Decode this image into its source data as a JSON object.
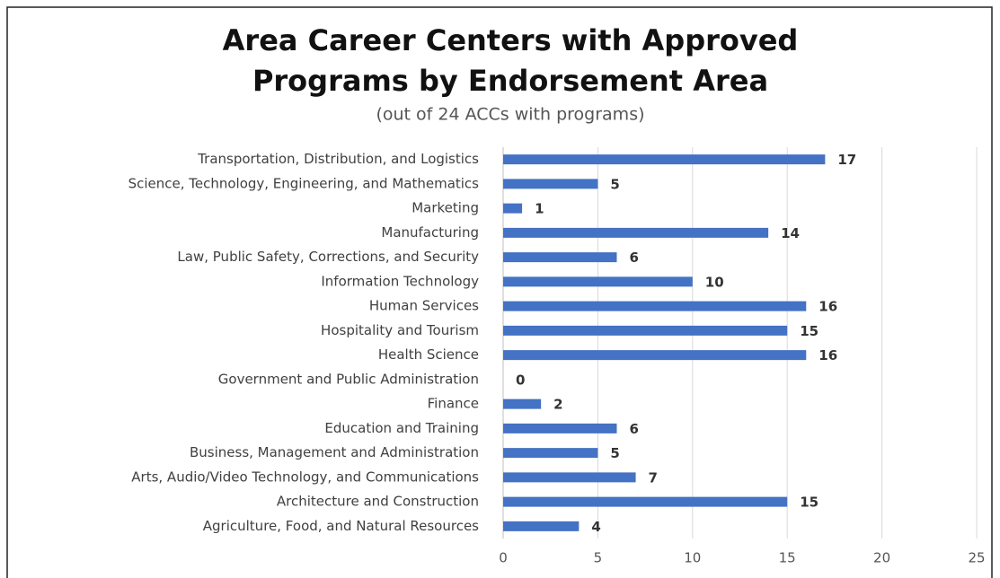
{
  "chart_data": {
    "type": "bar",
    "title": [
      "Area Career Centers with Approved",
      "Programs by Endorsement Area"
    ],
    "subtitle": "(out of 24 ACCs with programs)",
    "categories": [
      "Transportation, Distribution, and Logistics",
      "Science, Technology, Engineering, and Mathematics",
      "Marketing",
      "Manufacturing",
      "Law, Public Safety, Corrections, and Security",
      "Information Technology",
      "Human Services",
      "Hospitality and Tourism",
      "Health Science",
      "Government and Public Administration",
      "Finance",
      "Education and Training",
      "Business, Management and Administration",
      "Arts, Audio/Video Technology, and Communications",
      "Architecture and Construction",
      "Agriculture, Food, and Natural Resources"
    ],
    "values": [
      17,
      5,
      1,
      14,
      6,
      10,
      16,
      15,
      16,
      0,
      2,
      6,
      5,
      7,
      15,
      4
    ],
    "color": "#4472c4",
    "xlim": [
      0,
      25
    ],
    "xticks": [
      0,
      5,
      10,
      15,
      20,
      25
    ],
    "grid": true
  }
}
